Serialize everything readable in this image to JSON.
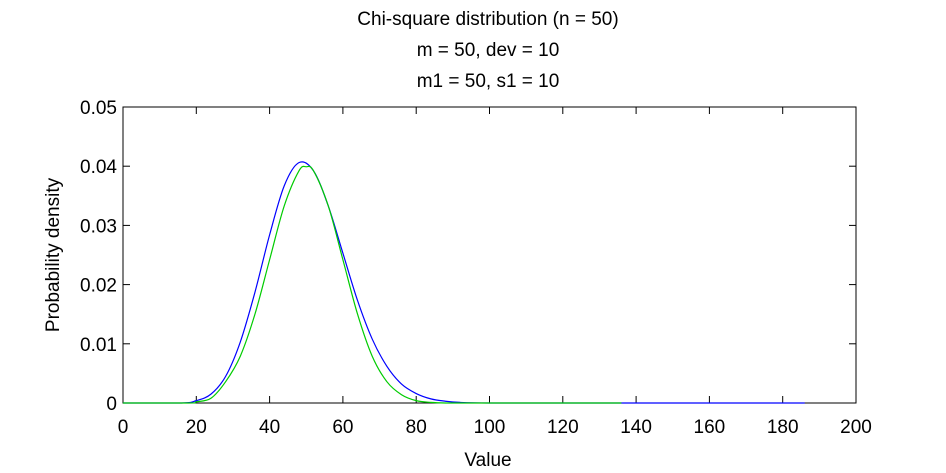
{
  "chart_data": {
    "type": "line",
    "title_lines": [
      "Chi-square distribution (n = 50)",
      "m = 50, dev = 10",
      "m1 = 50, s1 = 10"
    ],
    "xlabel": "Value",
    "ylabel": "Probability density",
    "xlim": [
      0,
      200
    ],
    "ylim": [
      0,
      0.05
    ],
    "x_ticks": [
      "0",
      "20",
      "40",
      "60",
      "80",
      "100",
      "120",
      "140",
      "160",
      "180",
      "200"
    ],
    "y_ticks": [
      "0",
      "0.01",
      "0.02",
      "0.03",
      "0.04",
      "0.05"
    ],
    "grid": false,
    "series": [
      {
        "color": "#0000ff",
        "x": [
          0,
          16,
          20,
          24,
          28,
          32,
          36,
          40,
          44,
          48,
          52,
          56,
          60,
          64,
          68,
          72,
          76,
          80,
          84,
          88,
          92,
          100,
          120,
          140,
          160,
          186
        ],
        "y": [
          0,
          0,
          0.0004,
          0.0015,
          0.0045,
          0.0103,
          0.0187,
          0.0284,
          0.0367,
          0.0406,
          0.0392,
          0.0333,
          0.0253,
          0.0173,
          0.0108,
          0.0062,
          0.0032,
          0.0016,
          0.0007,
          0.0003,
          0.0001,
          0,
          0,
          0,
          0,
          0
        ]
      },
      {
        "color": "#00cc00",
        "x": [
          0,
          18,
          20,
          24,
          28,
          32,
          36,
          40,
          44,
          48,
          50,
          52,
          56,
          60,
          64,
          68,
          72,
          76,
          80,
          84,
          88,
          92,
          100,
          120,
          136
        ],
        "y": [
          0,
          0,
          0.0002,
          0.0008,
          0.0036,
          0.0079,
          0.015,
          0.0242,
          0.0333,
          0.0392,
          0.0399,
          0.0392,
          0.0333,
          0.0242,
          0.015,
          0.0079,
          0.0036,
          0.0014,
          0.0004,
          0.0001,
          0,
          0,
          0,
          0,
          0
        ]
      }
    ]
  }
}
